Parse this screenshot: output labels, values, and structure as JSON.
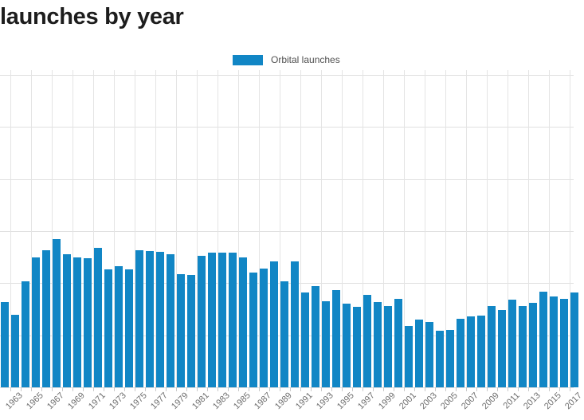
{
  "header": {
    "title_visible": "launches by year"
  },
  "legend": {
    "label": "Orbital launches"
  },
  "theme": {
    "bar_color": "#1186c5",
    "grid_color": "#e0e0e0",
    "vgrid_color": "#e4e4e4",
    "tick_color": "#c9c9c9",
    "axis_label_color": "#6e6e6e",
    "title_color": "#1d1d1d",
    "legend_text_color": "#4f4f4f",
    "background": "#ffffff"
  },
  "chart_data": {
    "type": "bar",
    "title": "launches by year",
    "series": [
      {
        "name": "Orbital launches",
        "x": [
          1962,
          1963,
          1964,
          1965,
          1966,
          1967,
          1968,
          1969,
          1970,
          1971,
          1972,
          1973,
          1974,
          1975,
          1976,
          1977,
          1978,
          1979,
          1980,
          1981,
          1982,
          1983,
          1984,
          1985,
          1986,
          1987,
          1988,
          1989,
          1990,
          1991,
          1992,
          1993,
          1994,
          1995,
          1996,
          1997,
          1998,
          1999,
          2000,
          2001,
          2002,
          2003,
          2004,
          2005,
          2006,
          2007,
          2008,
          2009,
          2010,
          2011,
          2012,
          2013,
          2014,
          2015,
          2016,
          2017
        ],
        "values": [
          82,
          70,
          102,
          125,
          132,
          142,
          128,
          125,
          124,
          134,
          113,
          116,
          113,
          132,
          131,
          130,
          128,
          109,
          108,
          126,
          129,
          129,
          129,
          125,
          110,
          114,
          121,
          102,
          121,
          91,
          97,
          83,
          93,
          80,
          77,
          89,
          82,
          78,
          85,
          59,
          65,
          63,
          54,
          55,
          66,
          68,
          69,
          78,
          74,
          84,
          78,
          81,
          92,
          87,
          85,
          91
        ]
      }
    ],
    "x_tick_labels": [
      "1963",
      "1965",
      "1967",
      "1969",
      "1971",
      "1973",
      "1975",
      "1977",
      "1979",
      "1981",
      "1983",
      "1985",
      "1987",
      "1989",
      "1991",
      "1993",
      "1995",
      "1997",
      "1999",
      "2001",
      "2003",
      "2005",
      "2007",
      "2009",
      "2011",
      "2013",
      "2015",
      "2017"
    ],
    "y_axis": {
      "range": [
        0,
        300
      ],
      "grid_interval": 50,
      "tick_labels_visible": false
    },
    "legend": {
      "position": "top-center",
      "entries": [
        "Orbital launches"
      ]
    },
    "grid": "on",
    "notes": "chart cropped at left edge (start of title and y-axis labels not visible); rightmost 2017 bar partially cut"
  }
}
